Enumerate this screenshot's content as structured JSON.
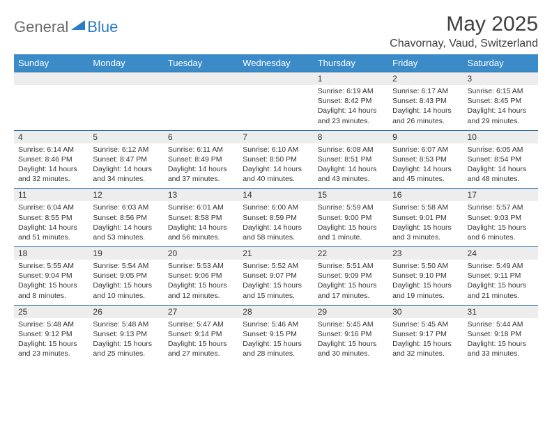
{
  "logo": {
    "text1": "General",
    "text2": "Blue"
  },
  "title": "May 2025",
  "location": "Chavornay, Vaud, Switzerland",
  "colors": {
    "header_bg": "#3b8bc9",
    "header_text": "#ffffff",
    "daterow_bg": "#ededed",
    "rule": "#2f6ea3",
    "logo_gray": "#6b6b6b",
    "logo_blue": "#2b7cc0"
  },
  "day_headers": [
    "Sunday",
    "Monday",
    "Tuesday",
    "Wednesday",
    "Thursday",
    "Friday",
    "Saturday"
  ],
  "weeks": [
    {
      "dates": [
        "",
        "",
        "",
        "",
        "1",
        "2",
        "3"
      ],
      "cells": [
        null,
        null,
        null,
        null,
        {
          "sunrise": "Sunrise: 6:19 AM",
          "sunset": "Sunset: 8:42 PM",
          "day1": "Daylight: 14 hours",
          "day2": "and 23 minutes."
        },
        {
          "sunrise": "Sunrise: 6:17 AM",
          "sunset": "Sunset: 8:43 PM",
          "day1": "Daylight: 14 hours",
          "day2": "and 26 minutes."
        },
        {
          "sunrise": "Sunrise: 6:15 AM",
          "sunset": "Sunset: 8:45 PM",
          "day1": "Daylight: 14 hours",
          "day2": "and 29 minutes."
        }
      ]
    },
    {
      "dates": [
        "4",
        "5",
        "6",
        "7",
        "8",
        "9",
        "10"
      ],
      "cells": [
        {
          "sunrise": "Sunrise: 6:14 AM",
          "sunset": "Sunset: 8:46 PM",
          "day1": "Daylight: 14 hours",
          "day2": "and 32 minutes."
        },
        {
          "sunrise": "Sunrise: 6:12 AM",
          "sunset": "Sunset: 8:47 PM",
          "day1": "Daylight: 14 hours",
          "day2": "and 34 minutes."
        },
        {
          "sunrise": "Sunrise: 6:11 AM",
          "sunset": "Sunset: 8:49 PM",
          "day1": "Daylight: 14 hours",
          "day2": "and 37 minutes."
        },
        {
          "sunrise": "Sunrise: 6:10 AM",
          "sunset": "Sunset: 8:50 PM",
          "day1": "Daylight: 14 hours",
          "day2": "and 40 minutes."
        },
        {
          "sunrise": "Sunrise: 6:08 AM",
          "sunset": "Sunset: 8:51 PM",
          "day1": "Daylight: 14 hours",
          "day2": "and 43 minutes."
        },
        {
          "sunrise": "Sunrise: 6:07 AM",
          "sunset": "Sunset: 8:53 PM",
          "day1": "Daylight: 14 hours",
          "day2": "and 45 minutes."
        },
        {
          "sunrise": "Sunrise: 6:05 AM",
          "sunset": "Sunset: 8:54 PM",
          "day1": "Daylight: 14 hours",
          "day2": "and 48 minutes."
        }
      ]
    },
    {
      "dates": [
        "11",
        "12",
        "13",
        "14",
        "15",
        "16",
        "17"
      ],
      "cells": [
        {
          "sunrise": "Sunrise: 6:04 AM",
          "sunset": "Sunset: 8:55 PM",
          "day1": "Daylight: 14 hours",
          "day2": "and 51 minutes."
        },
        {
          "sunrise": "Sunrise: 6:03 AM",
          "sunset": "Sunset: 8:56 PM",
          "day1": "Daylight: 14 hours",
          "day2": "and 53 minutes."
        },
        {
          "sunrise": "Sunrise: 6:01 AM",
          "sunset": "Sunset: 8:58 PM",
          "day1": "Daylight: 14 hours",
          "day2": "and 56 minutes."
        },
        {
          "sunrise": "Sunrise: 6:00 AM",
          "sunset": "Sunset: 8:59 PM",
          "day1": "Daylight: 14 hours",
          "day2": "and 58 minutes."
        },
        {
          "sunrise": "Sunrise: 5:59 AM",
          "sunset": "Sunset: 9:00 PM",
          "day1": "Daylight: 15 hours",
          "day2": "and 1 minute."
        },
        {
          "sunrise": "Sunrise: 5:58 AM",
          "sunset": "Sunset: 9:01 PM",
          "day1": "Daylight: 15 hours",
          "day2": "and 3 minutes."
        },
        {
          "sunrise": "Sunrise: 5:57 AM",
          "sunset": "Sunset: 9:03 PM",
          "day1": "Daylight: 15 hours",
          "day2": "and 6 minutes."
        }
      ]
    },
    {
      "dates": [
        "18",
        "19",
        "20",
        "21",
        "22",
        "23",
        "24"
      ],
      "cells": [
        {
          "sunrise": "Sunrise: 5:55 AM",
          "sunset": "Sunset: 9:04 PM",
          "day1": "Daylight: 15 hours",
          "day2": "and 8 minutes."
        },
        {
          "sunrise": "Sunrise: 5:54 AM",
          "sunset": "Sunset: 9:05 PM",
          "day1": "Daylight: 15 hours",
          "day2": "and 10 minutes."
        },
        {
          "sunrise": "Sunrise: 5:53 AM",
          "sunset": "Sunset: 9:06 PM",
          "day1": "Daylight: 15 hours",
          "day2": "and 12 minutes."
        },
        {
          "sunrise": "Sunrise: 5:52 AM",
          "sunset": "Sunset: 9:07 PM",
          "day1": "Daylight: 15 hours",
          "day2": "and 15 minutes."
        },
        {
          "sunrise": "Sunrise: 5:51 AM",
          "sunset": "Sunset: 9:09 PM",
          "day1": "Daylight: 15 hours",
          "day2": "and 17 minutes."
        },
        {
          "sunrise": "Sunrise: 5:50 AM",
          "sunset": "Sunset: 9:10 PM",
          "day1": "Daylight: 15 hours",
          "day2": "and 19 minutes."
        },
        {
          "sunrise": "Sunrise: 5:49 AM",
          "sunset": "Sunset: 9:11 PM",
          "day1": "Daylight: 15 hours",
          "day2": "and 21 minutes."
        }
      ]
    },
    {
      "dates": [
        "25",
        "26",
        "27",
        "28",
        "29",
        "30",
        "31"
      ],
      "cells": [
        {
          "sunrise": "Sunrise: 5:48 AM",
          "sunset": "Sunset: 9:12 PM",
          "day1": "Daylight: 15 hours",
          "day2": "and 23 minutes."
        },
        {
          "sunrise": "Sunrise: 5:48 AM",
          "sunset": "Sunset: 9:13 PM",
          "day1": "Daylight: 15 hours",
          "day2": "and 25 minutes."
        },
        {
          "sunrise": "Sunrise: 5:47 AM",
          "sunset": "Sunset: 9:14 PM",
          "day1": "Daylight: 15 hours",
          "day2": "and 27 minutes."
        },
        {
          "sunrise": "Sunrise: 5:46 AM",
          "sunset": "Sunset: 9:15 PM",
          "day1": "Daylight: 15 hours",
          "day2": "and 28 minutes."
        },
        {
          "sunrise": "Sunrise: 5:45 AM",
          "sunset": "Sunset: 9:16 PM",
          "day1": "Daylight: 15 hours",
          "day2": "and 30 minutes."
        },
        {
          "sunrise": "Sunrise: 5:45 AM",
          "sunset": "Sunset: 9:17 PM",
          "day1": "Daylight: 15 hours",
          "day2": "and 32 minutes."
        },
        {
          "sunrise": "Sunrise: 5:44 AM",
          "sunset": "Sunset: 9:18 PM",
          "day1": "Daylight: 15 hours",
          "day2": "and 33 minutes."
        }
      ]
    }
  ]
}
